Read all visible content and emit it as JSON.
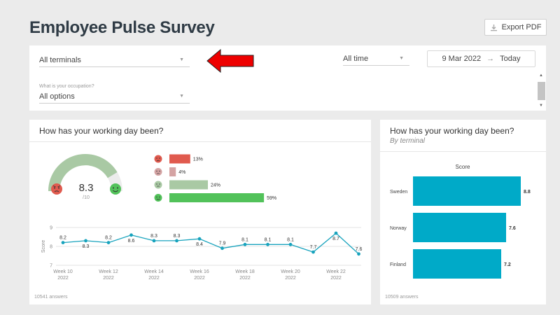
{
  "header": {
    "title": "Employee Pulse Survey",
    "export_label": "Export PDF",
    "export_icon": "download-icon"
  },
  "filters": {
    "terminals": {
      "value": "All terminals"
    },
    "time": {
      "value": "All time"
    },
    "date_from": "9 Mar 2022",
    "date_arrow": "→",
    "date_to": "Today",
    "occupation": {
      "label": "What is your occupation?",
      "value": "All options"
    }
  },
  "overall_card": {
    "title": "How has your working day been?",
    "score": "8.3",
    "score_max": "/10",
    "answers": "10541 answers"
  },
  "terminal_card": {
    "title": "How has your working day been?",
    "subtitle": "By terminal",
    "answers": "10509 answers"
  },
  "colors": {
    "gauge": "#a9c9a4",
    "very_bad": "#e05a4e",
    "bad": "#d4a3a3",
    "good": "#a9c9a4",
    "very_good": "#52c25a",
    "line": "#18a3bd",
    "bar": "#00aac8",
    "arrow": "#ee0000"
  },
  "chart_data": [
    {
      "type": "bar",
      "orientation": "horizontal",
      "categories": [
        "very-bad",
        "bad",
        "good",
        "very-good"
      ],
      "category_icons": [
        "angry-face-icon",
        "sad-face-icon",
        "neutral-face-icon",
        "happy-face-icon"
      ],
      "values": [
        13,
        4,
        24,
        59
      ],
      "labels": [
        "13%",
        "4%",
        "24%",
        "59%"
      ],
      "xlim": [
        0,
        100
      ]
    },
    {
      "type": "line",
      "x": [
        "Week 10",
        "Week 11",
        "Week 12",
        "Week 13",
        "Week 14",
        "Week 15",
        "Week 16",
        "Week 17",
        "Week 18",
        "Week 19",
        "Week 20",
        "Week 21",
        "Week 22",
        "Week 23"
      ],
      "y": [
        8.2,
        8.3,
        8.2,
        8.6,
        8.3,
        8.3,
        8.4,
        7.9,
        8.1,
        8.1,
        8.1,
        7.7,
        8.7,
        7.6
      ],
      "point_labels": [
        "8.2",
        "8.3",
        "8.2",
        "8.6",
        "8.3",
        "8.3",
        "8.4",
        "7.9",
        "8.1",
        "8.1",
        "8.1",
        "7.7",
        "8.7",
        "7.6"
      ],
      "x_ticks": [
        {
          "week": "Week 10",
          "year": "2022",
          "index": 0
        },
        {
          "week": "Week 12",
          "year": "2022",
          "index": 2
        },
        {
          "week": "Week 14",
          "year": "2022",
          "index": 4
        },
        {
          "week": "Week 16",
          "year": "2022",
          "index": 6
        },
        {
          "week": "Week 18",
          "year": "2022",
          "index": 8
        },
        {
          "week": "Week 20",
          "year": "2022",
          "index": 10
        },
        {
          "week": "Week 22",
          "year": "2022",
          "index": 12
        }
      ],
      "y_ticks": [
        "7",
        "8",
        "9"
      ],
      "ylabel": "Score",
      "ylim": [
        7,
        9
      ],
      "grid": true
    },
    {
      "type": "bar",
      "orientation": "horizontal",
      "title": "Score",
      "categories": [
        "Sweden",
        "Norway",
        "Finland"
      ],
      "values": [
        8.8,
        7.6,
        7.2
      ],
      "labels": [
        "8.8",
        "7.6",
        "7.2"
      ],
      "xlim": [
        0,
        10
      ]
    }
  ]
}
